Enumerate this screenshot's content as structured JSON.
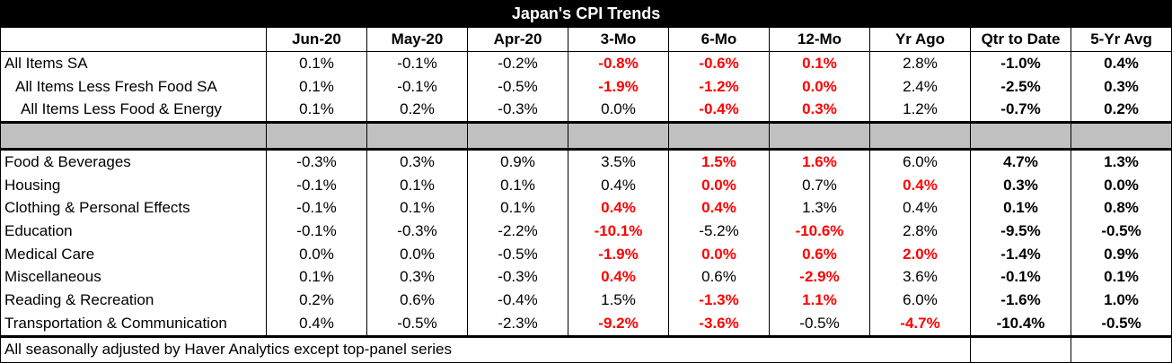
{
  "title": "Japan's CPI Trends",
  "columns": [
    "Jun-20",
    "May-20",
    "Apr-20",
    "3-Mo",
    "6-Mo",
    "12-Mo",
    "Yr Ago",
    "Qtr to Date",
    "5-Yr Avg"
  ],
  "top_rows": [
    {
      "label": "All Items SA",
      "indent": 0,
      "values": [
        "0.1%",
        "-0.1%",
        "-0.2%",
        "-0.8%",
        "-0.6%",
        "0.1%",
        "2.8%",
        "-1.0%",
        "0.4%"
      ],
      "red": [
        false,
        false,
        false,
        true,
        true,
        true,
        false,
        false,
        false
      ]
    },
    {
      "label": "All Items Less Fresh Food SA",
      "indent": 1,
      "values": [
        "0.1%",
        "-0.1%",
        "-0.5%",
        "-1.9%",
        "-1.2%",
        "0.0%",
        "2.4%",
        "-2.5%",
        "0.3%"
      ],
      "red": [
        false,
        false,
        false,
        true,
        true,
        true,
        false,
        false,
        false
      ]
    },
    {
      "label": "All Items Less Food & Energy",
      "indent": 2,
      "values": [
        "0.1%",
        "0.2%",
        "-0.3%",
        "0.0%",
        "-0.4%",
        "0.3%",
        "1.2%",
        "-0.7%",
        "0.2%"
      ],
      "red": [
        false,
        false,
        false,
        false,
        true,
        true,
        false,
        false,
        false
      ]
    }
  ],
  "bottom_rows": [
    {
      "label": "Food & Beverages",
      "values": [
        "-0.3%",
        "0.3%",
        "0.9%",
        "3.5%",
        "1.5%",
        "1.6%",
        "6.0%",
        "4.7%",
        "1.3%"
      ],
      "red": [
        false,
        false,
        false,
        false,
        true,
        true,
        false,
        false,
        false
      ]
    },
    {
      "label": "Housing",
      "values": [
        "-0.1%",
        "0.1%",
        "0.1%",
        "0.4%",
        "0.0%",
        "0.7%",
        "0.4%",
        "0.3%",
        "0.0%"
      ],
      "red": [
        false,
        false,
        false,
        false,
        true,
        false,
        true,
        false,
        false
      ]
    },
    {
      "label": "Clothing & Personal Effects",
      "values": [
        "-0.1%",
        "0.1%",
        "0.1%",
        "0.4%",
        "0.4%",
        "1.3%",
        "0.4%",
        "0.1%",
        "0.8%"
      ],
      "red": [
        false,
        false,
        false,
        true,
        true,
        false,
        false,
        false,
        false
      ]
    },
    {
      "label": "Education",
      "values": [
        "-0.1%",
        "-0.3%",
        "-2.2%",
        "-10.1%",
        "-5.2%",
        "-10.6%",
        "2.8%",
        "-9.5%",
        "-0.5%"
      ],
      "red": [
        false,
        false,
        false,
        true,
        false,
        true,
        false,
        false,
        false
      ]
    },
    {
      "label": "Medical Care",
      "values": [
        "0.0%",
        "0.0%",
        "-0.5%",
        "-1.9%",
        "0.0%",
        "0.6%",
        "2.0%",
        "-1.4%",
        "0.9%"
      ],
      "red": [
        false,
        false,
        false,
        true,
        true,
        true,
        true,
        false,
        false
      ]
    },
    {
      "label": "Miscellaneous",
      "values": [
        "0.1%",
        "0.3%",
        "-0.3%",
        "0.4%",
        "0.6%",
        "-2.9%",
        "3.6%",
        "-0.1%",
        "0.1%"
      ],
      "red": [
        false,
        false,
        false,
        true,
        false,
        true,
        false,
        false,
        false
      ]
    },
    {
      "label": "Reading & Recreation",
      "values": [
        "0.2%",
        "0.6%",
        "-0.4%",
        "1.5%",
        "-1.3%",
        "1.1%",
        "6.0%",
        "-1.6%",
        "1.0%"
      ],
      "red": [
        false,
        false,
        false,
        false,
        true,
        true,
        false,
        false,
        false
      ]
    },
    {
      "label": "Transportation & Communication",
      "values": [
        "0.4%",
        "-0.5%",
        "-2.3%",
        "-9.2%",
        "-3.6%",
        "-0.5%",
        "-4.7%",
        "-10.4%",
        "-0.5%"
      ],
      "red": [
        false,
        false,
        false,
        true,
        true,
        false,
        true,
        false,
        false
      ]
    }
  ],
  "footnote": "All seasonally adjusted by Haver Analytics except top-panel series",
  "colors": {
    "highlight": "#ff0000",
    "title_bg": "#000000",
    "separator_bg": "#c0c0c0"
  }
}
